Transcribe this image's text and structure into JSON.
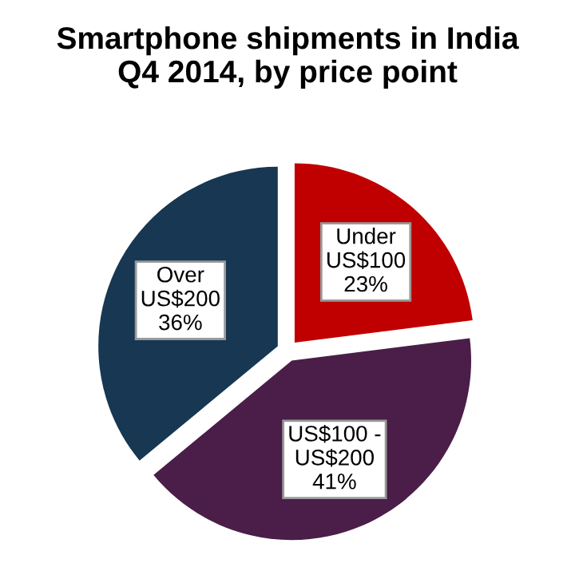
{
  "chart_data": {
    "type": "pie",
    "title": "Smartphone shipments in India\nQ4 2014, by price point",
    "categories": [
      "Under\nUS$100",
      "US$100 -\nUS$200",
      "Over\nUS$200"
    ],
    "values": [
      23,
      41,
      36
    ],
    "value_labels": [
      "23%",
      "41%",
      "36%"
    ],
    "colors": [
      "#c00000",
      "#4a1e48",
      "#173752"
    ]
  }
}
